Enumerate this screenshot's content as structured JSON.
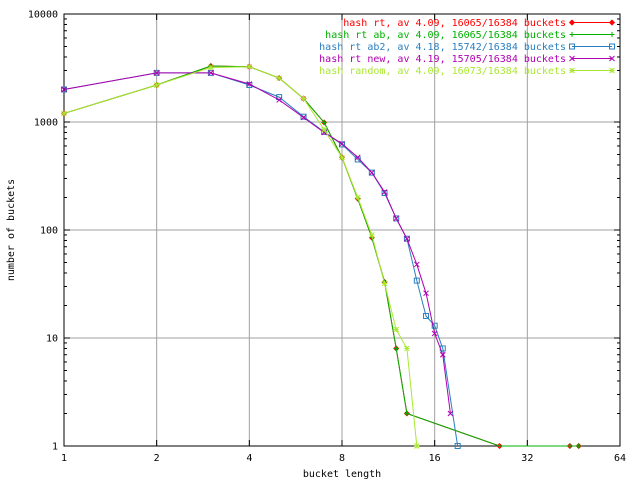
{
  "chart_data": {
    "type": "line",
    "xlabel": "bucket length",
    "ylabel": "number of buckets",
    "xscale": "log2",
    "yscale": "log10",
    "xlim": [
      1,
      64
    ],
    "ylim": [
      1,
      10000
    ],
    "grid": true,
    "legend_position": "top-right",
    "x_ticks": [
      "1",
      "2",
      "4",
      "8",
      "16",
      "32",
      "64"
    ],
    "y_ticks": [
      "1",
      "10",
      "100",
      "1000",
      "10000"
    ],
    "series": [
      {
        "name": "hash rt, av 4.09, 16065/16384 buckets",
        "color": "#ff0000",
        "marker": "diamond",
        "points": [
          [
            1,
            1200
          ],
          [
            2,
            2200
          ],
          [
            3,
            3300
          ],
          [
            4,
            3250
          ],
          [
            5,
            2550
          ],
          [
            6,
            1650
          ],
          [
            7,
            990
          ],
          [
            8,
            470
          ],
          [
            9,
            195
          ],
          [
            10,
            85
          ],
          [
            11,
            33
          ],
          [
            12,
            8
          ],
          [
            13,
            2
          ],
          [
            26,
            1
          ],
          [
            44,
            1
          ],
          [
            47,
            1
          ]
        ]
      },
      {
        "name": "hash rt ab, av 4.09, 16065/16384 buckets",
        "color": "#00b000",
        "marker": "plus",
        "points": [
          [
            1,
            1200
          ],
          [
            2,
            2200
          ],
          [
            3,
            3300
          ],
          [
            4,
            3250
          ],
          [
            5,
            2550
          ],
          [
            6,
            1650
          ],
          [
            7,
            990
          ],
          [
            8,
            470
          ],
          [
            9,
            195
          ],
          [
            10,
            85
          ],
          [
            11,
            33
          ],
          [
            12,
            8
          ],
          [
            13,
            2
          ],
          [
            26,
            1
          ],
          [
            44,
            1
          ],
          [
            47,
            1
          ]
        ]
      },
      {
        "name": "hash rt ab2, av 4.18, 15742/16384 buckets",
        "color": "#2a7fc0",
        "marker": "square",
        "points": [
          [
            1,
            2000
          ],
          [
            2,
            2850
          ],
          [
            3,
            2850
          ],
          [
            4,
            2200
          ],
          [
            5,
            1700
          ],
          [
            6,
            1120
          ],
          [
            7,
            810
          ],
          [
            8,
            620
          ],
          [
            9,
            450
          ],
          [
            10,
            340
          ],
          [
            11,
            220
          ],
          [
            12,
            128
          ],
          [
            13,
            83
          ],
          [
            14,
            34
          ],
          [
            15,
            16
          ],
          [
            16,
            13
          ],
          [
            17,
            8
          ],
          [
            19,
            1
          ]
        ]
      },
      {
        "name": "hash rt new, av 4.19, 15705/16384 buckets",
        "color": "#b000b0",
        "marker": "cross",
        "points": [
          [
            1,
            2000
          ],
          [
            2,
            2850
          ],
          [
            3,
            2850
          ],
          [
            4,
            2250
          ],
          [
            5,
            1600
          ],
          [
            6,
            1100
          ],
          [
            7,
            800
          ],
          [
            8,
            630
          ],
          [
            9,
            470
          ],
          [
            10,
            340
          ],
          [
            11,
            225
          ],
          [
            12,
            128
          ],
          [
            13,
            83
          ],
          [
            14,
            48
          ],
          [
            15,
            26
          ],
          [
            16,
            11
          ],
          [
            17,
            7
          ],
          [
            18,
            2
          ]
        ]
      },
      {
        "name": "hash random, av 4.09, 16073/16384 buckets",
        "color": "#a8e830",
        "marker": "star",
        "points": [
          [
            1,
            1200
          ],
          [
            2,
            2200
          ],
          [
            3,
            3200
          ],
          [
            4,
            3250
          ],
          [
            5,
            2550
          ],
          [
            6,
            1650
          ],
          [
            7,
            850
          ],
          [
            8,
            470
          ],
          [
            9,
            200
          ],
          [
            10,
            90
          ],
          [
            11,
            32
          ],
          [
            12,
            12
          ],
          [
            13,
            8
          ],
          [
            14,
            1
          ]
        ]
      }
    ]
  }
}
